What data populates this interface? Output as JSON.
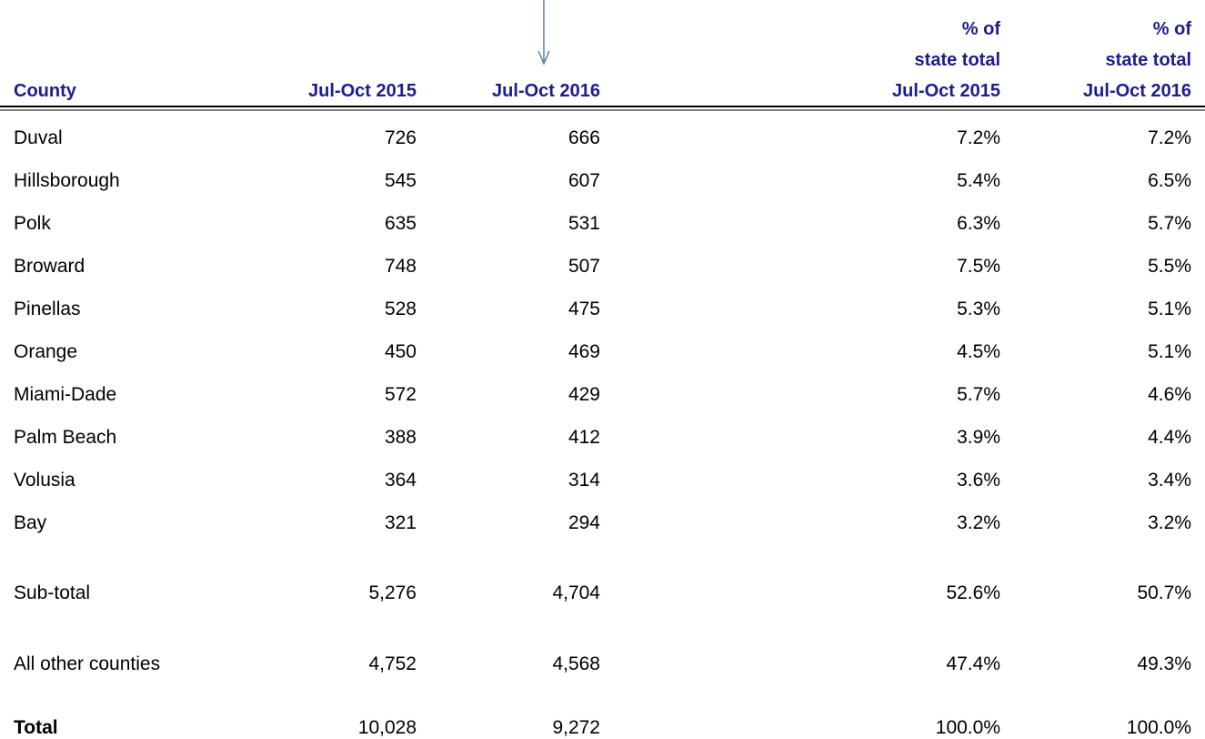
{
  "table": {
    "headers": [
      [
        "County"
      ],
      [
        "Jul-Oct 2015"
      ],
      [
        "Jul-Oct 2016"
      ],
      [
        "% of",
        "state total",
        "Jul-Oct 2015"
      ],
      [
        "% of",
        "state total",
        "Jul-Oct 2016"
      ]
    ],
    "rows": [
      [
        "Duval",
        "726",
        "666",
        "7.2%",
        "7.2%"
      ],
      [
        "Hillsborough",
        "545",
        "607",
        "5.4%",
        "6.5%"
      ],
      [
        "Polk",
        "635",
        "531",
        "6.3%",
        "5.7%"
      ],
      [
        "Broward",
        "748",
        "507",
        "7.5%",
        "5.5%"
      ],
      [
        "Pinellas",
        "528",
        "475",
        "5.3%",
        "5.1%"
      ],
      [
        "Orange",
        "450",
        "469",
        "4.5%",
        "5.1%"
      ],
      [
        "Miami-Dade",
        "572",
        "429",
        "5.7%",
        "4.6%"
      ],
      [
        "Palm Beach",
        "388",
        "412",
        "3.9%",
        "4.4%"
      ],
      [
        "Volusia",
        "364",
        "314",
        "3.6%",
        "3.4%"
      ],
      [
        "Bay",
        "321",
        "294",
        "3.2%",
        "3.2%"
      ],
      [
        "Sub-total",
        "5,276",
        "4,704",
        "52.6%",
        "50.7%"
      ],
      [
        "All other counties",
        "4,752",
        "4,568",
        "47.4%",
        "49.3%"
      ],
      [
        "Total",
        "10,028",
        "9,272",
        "100.0%",
        "100.0%"
      ]
    ]
  }
}
